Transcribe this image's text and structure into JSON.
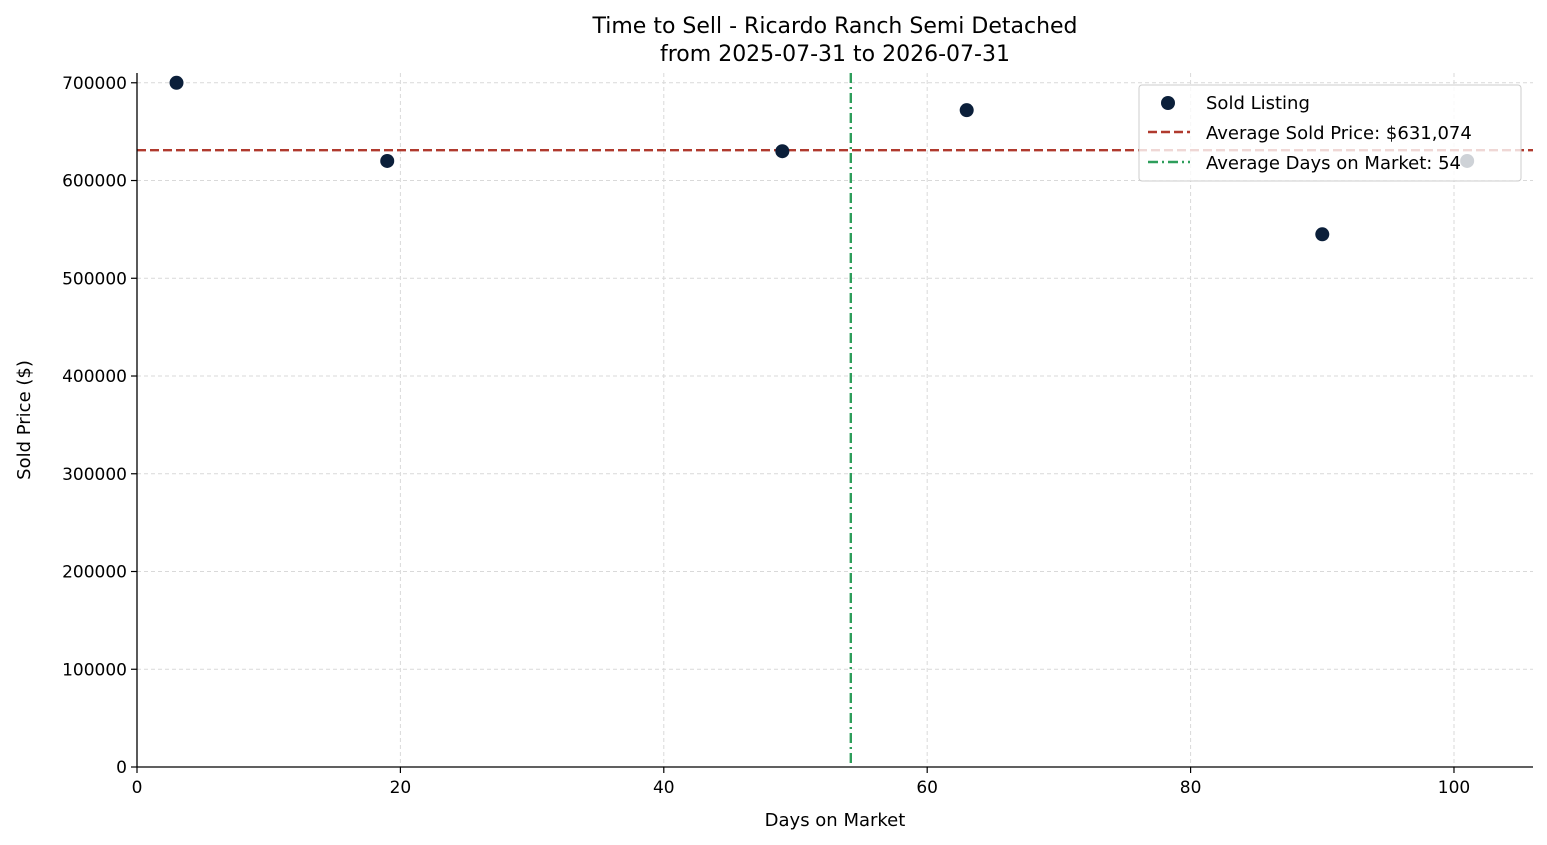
{
  "chart_data": {
    "type": "scatter",
    "title": "Time to Sell - Ricardo Ranch Semi Detached",
    "subtitle": "from 2025-07-31 to 2026-07-31",
    "xlabel": "Days on Market",
    "ylabel": "Sold Price ($)",
    "xlim": [
      0,
      106
    ],
    "ylim": [
      0,
      710000
    ],
    "xticks": [
      0,
      20,
      40,
      60,
      80,
      100
    ],
    "yticks": [
      0,
      100000,
      200000,
      300000,
      400000,
      500000,
      600000,
      700000
    ],
    "grid": true,
    "legend_position": "top-right",
    "series": [
      {
        "name": "Sold Listing",
        "color": "#0b1f3a",
        "points": [
          {
            "x": 3,
            "y": 700000
          },
          {
            "x": 19,
            "y": 620000
          },
          {
            "x": 49,
            "y": 630000
          },
          {
            "x": 63,
            "y": 672000
          },
          {
            "x": 90,
            "y": 545000
          },
          {
            "x": 101,
            "y": 620000
          }
        ]
      }
    ],
    "reference_lines": [
      {
        "name": "Average Sold Price: $631,074",
        "orientation": "horizontal",
        "value": 631074,
        "color": "#b03a2e",
        "style": "dashed"
      },
      {
        "name": "Average Days on Market: 54",
        "orientation": "vertical",
        "value": 54.2,
        "color": "#2e9e5b",
        "style": "dashdot"
      }
    ]
  }
}
